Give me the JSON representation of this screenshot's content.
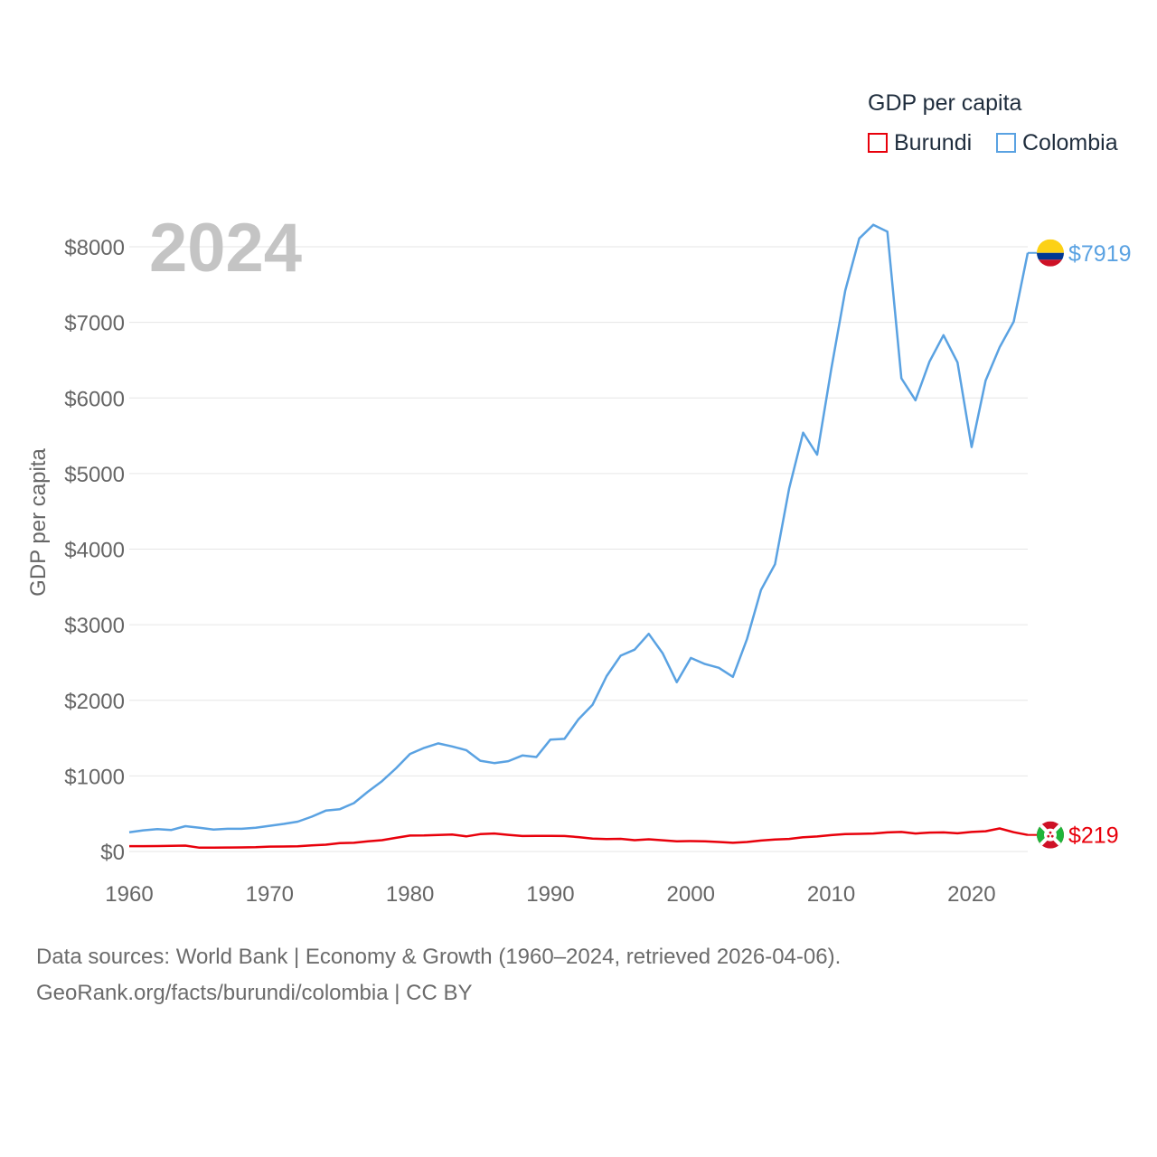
{
  "chart_data": {
    "type": "line",
    "title": "GDP per capita",
    "year_label": "2024",
    "ylabel": "GDP per capita",
    "xlabel": "",
    "xlim": [
      1960,
      2024
    ],
    "ylim": [
      0,
      8500
    ],
    "y_ticks": [
      0,
      1000,
      2000,
      3000,
      4000,
      5000,
      6000,
      7000,
      8000
    ],
    "y_tick_labels": [
      "$0",
      "$1000",
      "$2000",
      "$3000",
      "$4000",
      "$5000",
      "$6000",
      "$7000",
      "$8000"
    ],
    "x_ticks": [
      1960,
      1970,
      1980,
      1990,
      2000,
      2010,
      2020
    ],
    "x_tick_labels": [
      "1960",
      "1970",
      "1980",
      "1990",
      "2000",
      "2010",
      "2020"
    ],
    "grid": true,
    "legend_position": "top-right",
    "x": [
      1960,
      1961,
      1962,
      1963,
      1964,
      1965,
      1966,
      1967,
      1968,
      1969,
      1970,
      1971,
      1972,
      1973,
      1974,
      1975,
      1976,
      1977,
      1978,
      1979,
      1980,
      1981,
      1982,
      1983,
      1984,
      1985,
      1986,
      1987,
      1988,
      1989,
      1990,
      1991,
      1992,
      1993,
      1994,
      1995,
      1996,
      1997,
      1998,
      1999,
      2000,
      2001,
      2002,
      2003,
      2004,
      2005,
      2006,
      2007,
      2008,
      2009,
      2010,
      2011,
      2012,
      2013,
      2014,
      2015,
      2016,
      2017,
      2018,
      2019,
      2020,
      2021,
      2022,
      2023,
      2024
    ],
    "series": [
      {
        "name": "Burundi",
        "color": "#e8000b",
        "end_label": "$219",
        "values": [
          70,
          71,
          72,
          74,
          78,
          50,
          52,
          53,
          54,
          56,
          65,
          66,
          68,
          80,
          90,
          110,
          115,
          135,
          150,
          180,
          210,
          212,
          218,
          225,
          200,
          230,
          238,
          220,
          205,
          206,
          206,
          205,
          190,
          170,
          165,
          168,
          150,
          162,
          148,
          135,
          137,
          135,
          125,
          115,
          125,
          145,
          158,
          166,
          188,
          198,
          217,
          230,
          233,
          238,
          252,
          258,
          238,
          250,
          252,
          240,
          258,
          268,
          305,
          255,
          219
        ]
      },
      {
        "name": "Colombia",
        "color": "#5aa2e2",
        "end_label": "$7919",
        "values": [
          255,
          280,
          295,
          285,
          335,
          315,
          290,
          300,
          300,
          315,
          340,
          365,
          395,
          460,
          540,
          560,
          640,
          790,
          930,
          1100,
          1290,
          1370,
          1430,
          1390,
          1340,
          1200,
          1170,
          1195,
          1270,
          1250,
          1480,
          1490,
          1750,
          1940,
          2320,
          2590,
          2670,
          2880,
          2620,
          2240,
          2560,
          2480,
          2430,
          2310,
          2810,
          3460,
          3800,
          4800,
          5540,
          5250,
          6380,
          7420,
          8110,
          8290,
          8200,
          6260,
          5970,
          6480,
          6830,
          6470,
          5350,
          6230,
          6670,
          7010,
          7919
        ]
      }
    ]
  },
  "source": {
    "line1": "Data sources: World Bank | Economy & Growth (1960–2024, retrieved 2026-04-06).",
    "line2": "GeoRank.org/facts/burundi/colombia | CC BY"
  }
}
